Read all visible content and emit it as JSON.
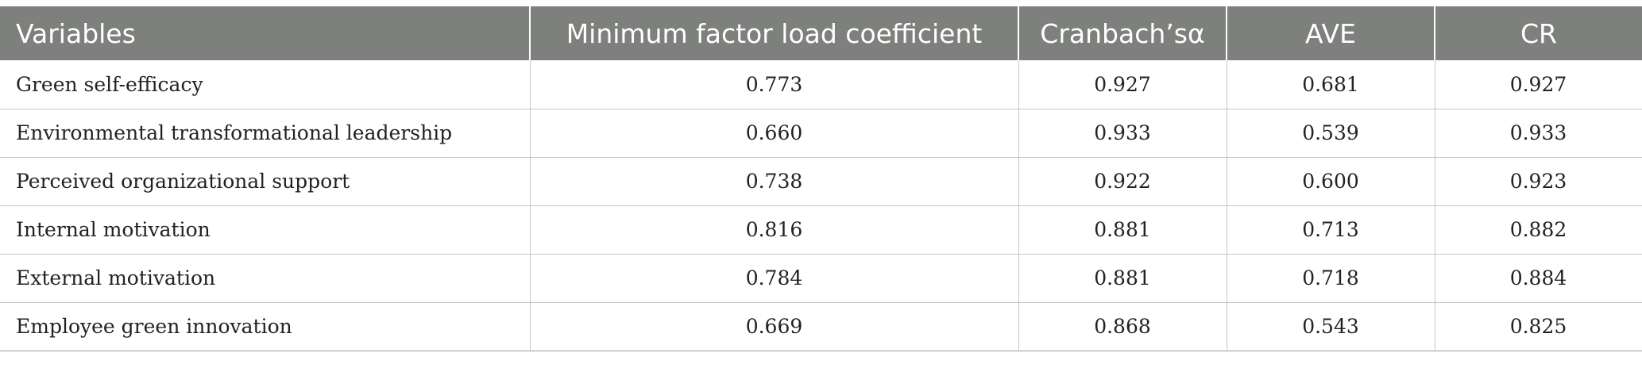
{
  "table": {
    "headers": [
      "Variables",
      "Minimum factor load coefficient",
      "Cranbach’sα",
      "AVE",
      "CR"
    ],
    "rows": [
      [
        "Green self-efficacy",
        "0.773",
        "0.927",
        "0.681",
        "0.927"
      ],
      [
        "Environmental transformational leadership",
        "0.660",
        "0.933",
        "0.539",
        "0.933"
      ],
      [
        "Perceived organizational support",
        "0.738",
        "0.922",
        "0.600",
        "0.923"
      ],
      [
        "Internal motivation",
        "0.816",
        "0.881",
        "0.713",
        "0.882"
      ],
      [
        "External motivation",
        "0.784",
        "0.881",
        "0.718",
        "0.884"
      ],
      [
        "Employee green innovation",
        "0.669",
        "0.868",
        "0.543",
        "0.825"
      ]
    ]
  },
  "colors": {
    "header_background": "#7e807d",
    "header_text": "#ffffff",
    "grid_line": "#c6c6c6"
  }
}
